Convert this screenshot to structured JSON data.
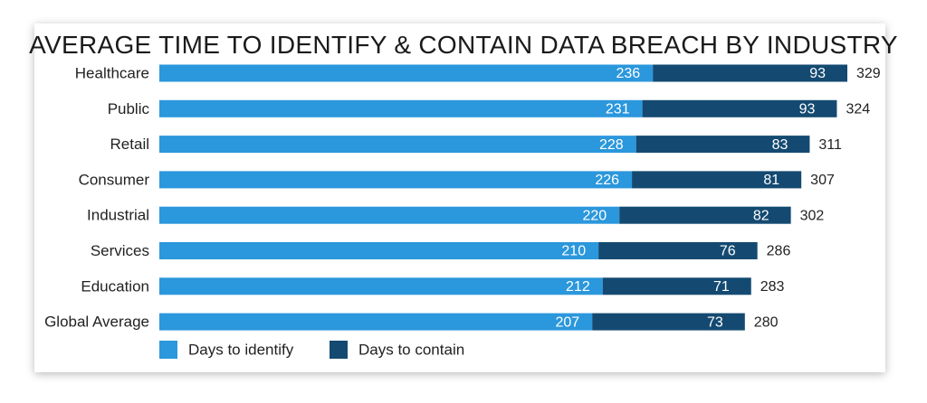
{
  "chart_data": {
    "type": "bar",
    "orientation": "horizontal",
    "stacked": true,
    "title": "AVERAGE TIME TO IDENTIFY & CONTAIN DATA BREACH BY INDUSTRY",
    "categories": [
      "Healthcare",
      "Public",
      "Retail",
      "Consumer",
      "Industrial",
      "Services",
      "Education",
      "Global Average"
    ],
    "series": [
      {
        "name": "Days to identify",
        "color": "#2b97dc",
        "values": [
          236,
          231,
          228,
          226,
          220,
          210,
          212,
          207
        ]
      },
      {
        "name": "Days to contain",
        "color": "#144a71",
        "values": [
          93,
          93,
          83,
          81,
          82,
          76,
          71,
          73
        ]
      }
    ],
    "totals": [
      329,
      324,
      311,
      307,
      302,
      286,
      283,
      280
    ],
    "xlim": [
      0,
      329
    ],
    "grid": false,
    "legend": "bottom-left"
  }
}
